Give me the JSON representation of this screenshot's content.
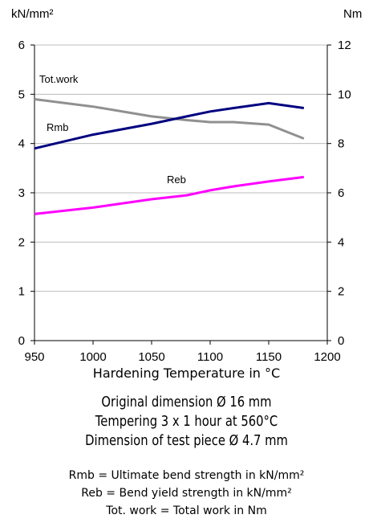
{
  "chart_data": {
    "type": "line",
    "title": "",
    "xlabel": "Hardening Temperature in °C",
    "y_left_label": "kN/mm²",
    "y_right_label": "Nm",
    "x_ticks": [
      "950",
      "1000",
      "1050",
      "1100",
      "1150",
      "1200"
    ],
    "y_left_ticks": [
      "0",
      "1",
      "2",
      "3",
      "4",
      "5",
      "6"
    ],
    "y_right_ticks": [
      "0",
      "2",
      "4",
      "6",
      "8",
      "10",
      "12"
    ],
    "xlim": [
      950,
      1200
    ],
    "y_left_lim": [
      0,
      6
    ],
    "y_right_lim": [
      0,
      12
    ],
    "grid": "horizontal",
    "series": [
      {
        "name": "Tot.work",
        "axis": "right",
        "color": "#909090",
        "x": [
          950,
          1000,
          1050,
          1080,
          1100,
          1120,
          1150,
          1180
        ],
        "y": [
          9.8,
          9.5,
          9.1,
          8.95,
          8.87,
          8.87,
          8.77,
          8.2
        ]
      },
      {
        "name": "Rmb",
        "axis": "left",
        "color": "#000080",
        "x": [
          950,
          1000,
          1050,
          1080,
          1100,
          1120,
          1150,
          1180
        ],
        "y": [
          3.9,
          4.18,
          4.4,
          4.55,
          4.65,
          4.72,
          4.82,
          4.72
        ]
      },
      {
        "name": "Reb",
        "axis": "left",
        "color": "#ff00ff",
        "x": [
          950,
          1000,
          1050,
          1080,
          1100,
          1120,
          1150,
          1180
        ],
        "y": [
          2.57,
          2.7,
          2.87,
          2.95,
          3.05,
          3.13,
          3.23,
          3.32
        ]
      }
    ]
  },
  "conditions": [
    "Original dimension Ø 16 mm",
    "Tempering 3 x 1 hour at 560°C",
    "Dimension of test piece Ø 4.7 mm"
  ],
  "legend_notes": [
    "Rmb = Ultimate bend strength in kN/mm²",
    "Reb =   Bend yield strength in kN/mm²",
    "Tot. work = Total work in Nm"
  ]
}
